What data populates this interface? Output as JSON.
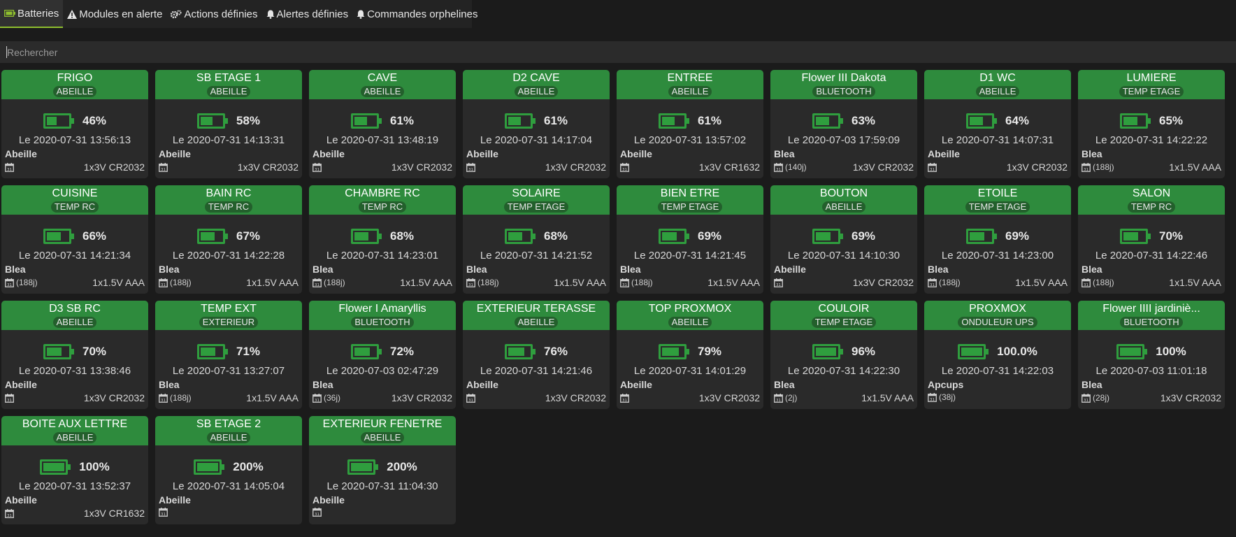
{
  "tabs": [
    {
      "label": "Batteries",
      "icon": "battery-icon",
      "active": true
    },
    {
      "label": "Modules en alerte",
      "icon": "warning-icon",
      "active": false
    },
    {
      "label": "Actions définies",
      "icon": "gears-icon",
      "active": false
    },
    {
      "label": "Alertes définies",
      "icon": "bell-icon",
      "active": false
    },
    {
      "label": "Commandes orphelines",
      "icon": "bell-icon",
      "active": false
    }
  ],
  "search": {
    "placeholder": "Rechercher",
    "value": ""
  },
  "colors": {
    "header": "#2e8b3d",
    "battery": "#2f9e3e",
    "tab_active_border": "#8fbf2e"
  },
  "cards": [
    {
      "name": "FRIGO",
      "category": "ABEILLE",
      "percent": "46%",
      "level": 46,
      "date": "Le 2020-07-31 13:56:13",
      "type": "Abeille",
      "days": "",
      "battery": "1x3V CR2032"
    },
    {
      "name": "SB ETAGE 1",
      "category": "ABEILLE",
      "percent": "58%",
      "level": 58,
      "date": "Le 2020-07-31 14:13:31",
      "type": "Abeille",
      "days": "",
      "battery": "1x3V CR2032"
    },
    {
      "name": "CAVE",
      "category": "ABEILLE",
      "percent": "61%",
      "level": 61,
      "date": "Le 2020-07-31 13:48:19",
      "type": "Abeille",
      "days": "",
      "battery": "1x3V CR2032"
    },
    {
      "name": "D2 CAVE",
      "category": "ABEILLE",
      "percent": "61%",
      "level": 61,
      "date": "Le 2020-07-31 14:17:04",
      "type": "Abeille",
      "days": "",
      "battery": "1x3V CR2032"
    },
    {
      "name": "ENTREE",
      "category": "ABEILLE",
      "percent": "61%",
      "level": 61,
      "date": "Le 2020-07-31 13:57:02",
      "type": "Abeille",
      "days": "",
      "battery": "1x3V CR1632"
    },
    {
      "name": "Flower III Dakota",
      "category": "BLUETOOTH",
      "percent": "63%",
      "level": 63,
      "date": "Le 2020-07-03 17:59:09",
      "type": "Blea",
      "days": "(140j)",
      "battery": "1x3V CR2032"
    },
    {
      "name": "D1 WC",
      "category": "ABEILLE",
      "percent": "64%",
      "level": 64,
      "date": "Le 2020-07-31 14:07:31",
      "type": "Abeille",
      "days": "",
      "battery": "1x3V CR2032"
    },
    {
      "name": "LUMIERE",
      "category": "TEMP ETAGE",
      "percent": "65%",
      "level": 65,
      "date": "Le 2020-07-31 14:22:22",
      "type": "Blea",
      "days": "(188j)",
      "battery": "1x1.5V AAA"
    },
    {
      "name": "CUISINE",
      "category": "TEMP RC",
      "percent": "66%",
      "level": 66,
      "date": "Le 2020-07-31 14:21:34",
      "type": "Blea",
      "days": "(188j)",
      "battery": "1x1.5V AAA"
    },
    {
      "name": "BAIN RC",
      "category": "TEMP RC",
      "percent": "67%",
      "level": 67,
      "date": "Le 2020-07-31 14:22:28",
      "type": "Blea",
      "days": "(188j)",
      "battery": "1x1.5V AAA"
    },
    {
      "name": "CHAMBRE RC",
      "category": "TEMP RC",
      "percent": "68%",
      "level": 68,
      "date": "Le 2020-07-31 14:23:01",
      "type": "Blea",
      "days": "(188j)",
      "battery": "1x1.5V AAA"
    },
    {
      "name": "SOLAIRE",
      "category": "TEMP ETAGE",
      "percent": "68%",
      "level": 68,
      "date": "Le 2020-07-31 14:21:52",
      "type": "Blea",
      "days": "(188j)",
      "battery": "1x1.5V AAA"
    },
    {
      "name": "BIEN ETRE",
      "category": "TEMP ETAGE",
      "percent": "69%",
      "level": 69,
      "date": "Le 2020-07-31 14:21:45",
      "type": "Blea",
      "days": "(188j)",
      "battery": "1x1.5V AAA"
    },
    {
      "name": "BOUTON",
      "category": "ABEILLE",
      "percent": "69%",
      "level": 69,
      "date": "Le 2020-07-31 14:10:30",
      "type": "Abeille",
      "days": "",
      "battery": "1x3V CR2032"
    },
    {
      "name": "ETOILE",
      "category": "TEMP ETAGE",
      "percent": "69%",
      "level": 69,
      "date": "Le 2020-07-31 14:23:00",
      "type": "Blea",
      "days": "(188j)",
      "battery": "1x1.5V AAA"
    },
    {
      "name": "SALON",
      "category": "TEMP RC",
      "percent": "70%",
      "level": 70,
      "date": "Le 2020-07-31 14:22:46",
      "type": "Blea",
      "days": "(188j)",
      "battery": "1x1.5V AAA"
    },
    {
      "name": "D3 SB RC",
      "category": "ABEILLE",
      "percent": "70%",
      "level": 70,
      "date": "Le 2020-07-31 13:38:46",
      "type": "Abeille",
      "days": "",
      "battery": "1x3V CR2032"
    },
    {
      "name": "TEMP EXT",
      "category": "EXTERIEUR",
      "percent": "71%",
      "level": 71,
      "date": "Le 2020-07-31 13:27:07",
      "type": "Blea",
      "days": "(188j)",
      "battery": "1x1.5V AAA"
    },
    {
      "name": "Flower I Amaryllis",
      "category": "BLUETOOTH",
      "percent": "72%",
      "level": 72,
      "date": "Le 2020-07-03 02:47:29",
      "type": "Blea",
      "days": "(36j)",
      "battery": "1x3V CR2032"
    },
    {
      "name": "EXTERIEUR TERASSE",
      "category": "ABEILLE",
      "percent": "76%",
      "level": 76,
      "date": "Le 2020-07-31 14:21:46",
      "type": "Abeille",
      "days": "",
      "battery": "1x3V CR2032"
    },
    {
      "name": "TOP PROXMOX",
      "category": "ABEILLE",
      "percent": "79%",
      "level": 79,
      "date": "Le 2020-07-31 14:01:29",
      "type": "Abeille",
      "days": "",
      "battery": "1x3V CR2032"
    },
    {
      "name": "COULOIR",
      "category": "TEMP ETAGE",
      "percent": "96%",
      "level": 96,
      "date": "Le 2020-07-31 14:22:30",
      "type": "Blea",
      "days": "(2j)",
      "battery": "1x1.5V AAA"
    },
    {
      "name": "PROXMOX",
      "category": "ONDULEUR UPS",
      "percent": "100.0%",
      "level": 100,
      "date": "Le 2020-07-31 14:22:03",
      "type": "Apcups",
      "days": "(38j)",
      "battery": ""
    },
    {
      "name": "Flower IIII jardiniè...",
      "category": "BLUETOOTH",
      "percent": "100%",
      "level": 100,
      "date": "Le 2020-07-03 11:01:18",
      "type": "Blea",
      "days": "(28j)",
      "battery": "1x3V CR2032"
    },
    {
      "name": "BOITE AUX LETTRE",
      "category": "ABEILLE",
      "percent": "100%",
      "level": 100,
      "date": "Le 2020-07-31 13:52:37",
      "type": "Abeille",
      "days": "",
      "battery": "1x3V CR1632"
    },
    {
      "name": "SB ETAGE 2",
      "category": "ABEILLE",
      "percent": "200%",
      "level": 100,
      "date": "Le 2020-07-31 14:05:04",
      "type": "Abeille",
      "days": "",
      "battery": ""
    },
    {
      "name": "EXTERIEUR FENETRE",
      "category": "ABEILLE",
      "percent": "200%",
      "level": 100,
      "date": "Le 2020-07-31 11:04:30",
      "type": "Abeille",
      "days": "",
      "battery": ""
    }
  ]
}
